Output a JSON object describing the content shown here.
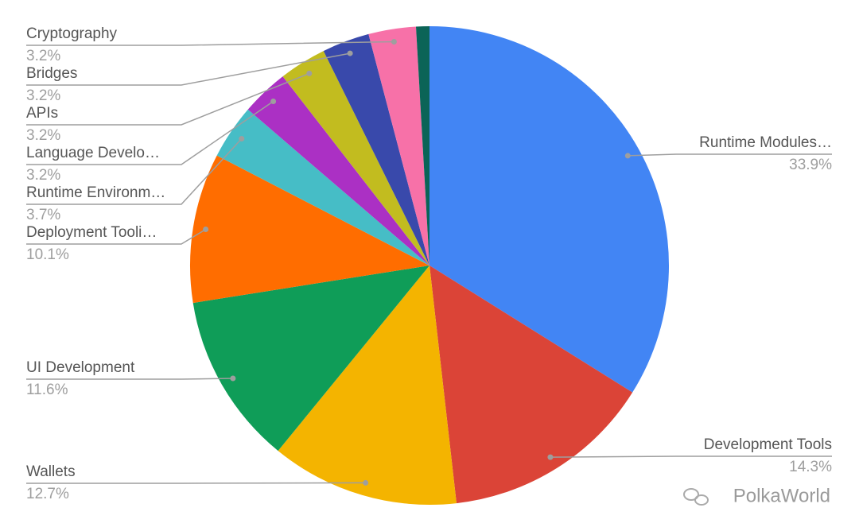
{
  "chart_data": {
    "type": "pie",
    "categories": [
      "Runtime Modules…",
      "Development Tools",
      "Wallets",
      "UI Development",
      "Deployment Tooli…",
      "Runtime Environm…",
      "Language Develo…",
      "APIs",
      "Bridges",
      "Cryptography",
      null
    ],
    "values": [
      33.9,
      14.3,
      12.7,
      11.6,
      10.1,
      3.7,
      3.2,
      3.2,
      3.2,
      3.2,
      0.9
    ],
    "value_labels": [
      "33.9%",
      "14.3%",
      "12.7%",
      "11.6%",
      "10.1%",
      "3.7%",
      "3.2%",
      "3.2%",
      "3.2%",
      "3.2%",
      null
    ],
    "colors": [
      "#4285f4",
      "#db4437",
      "#f4b400",
      "#0f9d58",
      "#ff6d00",
      "#46bdc6",
      "#ab30c4",
      "#c2bc1f",
      "#3949ab",
      "#f771a8",
      "#0b6457"
    ],
    "watermark": "PolkaWorld"
  }
}
